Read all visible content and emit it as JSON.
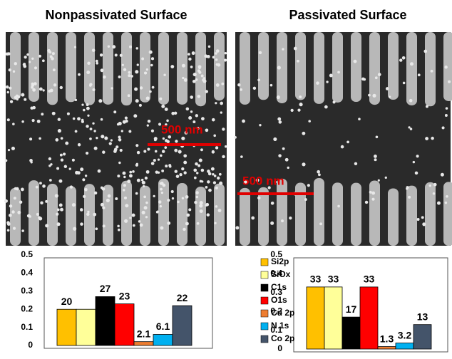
{
  "images": [
    {
      "title": "Nonpassivated Surface",
      "scale_label": "500 nm"
    },
    {
      "title": "Passivated Surface",
      "scale_label": "500 nm"
    }
  ],
  "chart_data": [
    {
      "type": "bar",
      "categories": [
        "Si2p",
        "SiOx",
        "C1s",
        "O1s",
        "Cu 2p",
        "N 1s",
        "Co 2p"
      ],
      "colors": [
        "#ffc000",
        "#ffff99",
        "#000000",
        "#ff0000",
        "#ed7d31",
        "#00b0f0",
        "#44546a"
      ],
      "values": [
        0.2,
        0.2,
        0.27,
        0.23,
        0.021,
        0.061,
        0.22
      ],
      "value_labels": [
        "20",
        null,
        "27",
        "23",
        "2.1",
        "6.1",
        "22"
      ],
      "ylim": [
        0,
        0.5
      ],
      "yticks": [
        0,
        0.1,
        0.2,
        0.3,
        0.4,
        0.5
      ]
    },
    {
      "type": "bar",
      "values": [
        0.33,
        0.33,
        0.17,
        0.33,
        0.013,
        0.032,
        0.13
      ],
      "value_labels": [
        "33",
        "33",
        "17",
        "33",
        "1.3",
        "3.2",
        "13"
      ],
      "ylim": [
        0,
        0.5
      ],
      "yticks": [
        0,
        0.1,
        0.2,
        0.3,
        0.4,
        0.5
      ]
    }
  ]
}
